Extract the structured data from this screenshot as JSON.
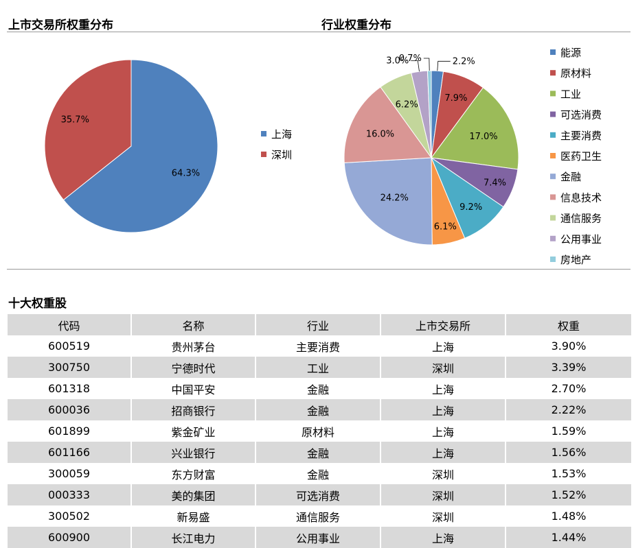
{
  "headings": {
    "exchange": "上市交易所权重分布",
    "industry": "行业权重分布",
    "top10": "十大权重股"
  },
  "chart_data": [
    {
      "type": "pie",
      "title": "上市交易所权重分布",
      "categories": [
        "上海",
        "深圳"
      ],
      "values": [
        64.3,
        35.7
      ],
      "labels": [
        "64.3%",
        "35.7%"
      ],
      "colors": [
        "#4f81bd",
        "#c0504d"
      ],
      "legend": "right"
    },
    {
      "type": "pie",
      "title": "行业权重分布",
      "categories": [
        "能源",
        "原材料",
        "工业",
        "可选消费",
        "主要消费",
        "医药卫生",
        "金融",
        "信息技术",
        "通信服务",
        "公用事业",
        "房地产"
      ],
      "values": [
        2.2,
        7.9,
        17.0,
        7.4,
        9.2,
        6.1,
        24.2,
        16.0,
        6.2,
        3.0,
        0.7
      ],
      "labels": [
        "2.2%",
        "7.9%",
        "17.0%",
        "7.4%",
        "9.2%",
        "6.1%",
        "24.2%",
        "16.0%",
        "6.2%",
        "3.0%",
        "0.7%"
      ],
      "colors": [
        "#4f81bd",
        "#c0504d",
        "#9bbb59",
        "#8064a2",
        "#4bacc6",
        "#f79646",
        "#95a9d6",
        "#d99694",
        "#c3d69b",
        "#b3a2c7",
        "#93cddd"
      ],
      "legend": "right"
    }
  ],
  "table": {
    "columns": [
      "代码",
      "名称",
      "行业",
      "上市交易所",
      "权重"
    ],
    "rows": [
      [
        "600519",
        "贵州茅台",
        "主要消费",
        "上海",
        "3.90%"
      ],
      [
        "300750",
        "宁德时代",
        "工业",
        "深圳",
        "3.39%"
      ],
      [
        "601318",
        "中国平安",
        "金融",
        "上海",
        "2.70%"
      ],
      [
        "600036",
        "招商银行",
        "金融",
        "上海",
        "2.22%"
      ],
      [
        "601899",
        "紫金矿业",
        "原材料",
        "上海",
        "1.59%"
      ],
      [
        "601166",
        "兴业银行",
        "金融",
        "上海",
        "1.56%"
      ],
      [
        "300059",
        "东方财富",
        "金融",
        "深圳",
        "1.53%"
      ],
      [
        "000333",
        "美的集团",
        "可选消费",
        "深圳",
        "1.52%"
      ],
      [
        "300502",
        "新易盛",
        "通信服务",
        "深圳",
        "1.48%"
      ],
      [
        "600900",
        "长江电力",
        "公用事业",
        "上海",
        "1.44%"
      ]
    ]
  }
}
